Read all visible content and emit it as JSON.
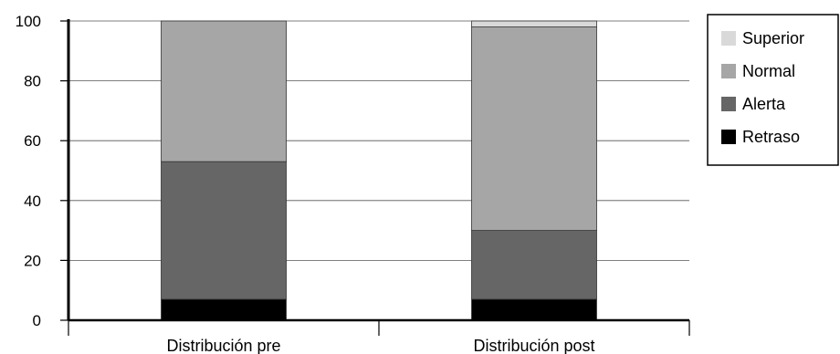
{
  "chart_data": {
    "type": "bar",
    "stacked": true,
    "categories": [
      "Distribución pre",
      "Distribución post"
    ],
    "series": [
      {
        "name": "Retraso",
        "values": [
          7,
          7
        ],
        "color": "#000000"
      },
      {
        "name": "Alerta",
        "values": [
          46,
          23
        ],
        "color": "#666666"
      },
      {
        "name": "Normal",
        "values": [
          47,
          68
        ],
        "color": "#a6a6a6"
      },
      {
        "name": "Superior",
        "values": [
          0,
          2
        ],
        "color": "#d9d9d9"
      }
    ],
    "legend_order": [
      "Superior",
      "Normal",
      "Alerta",
      "Retraso"
    ],
    "ylim": [
      0,
      100
    ],
    "yticks": [
      0,
      20,
      40,
      60,
      80,
      100
    ],
    "grid": true,
    "legend_position": "top-right",
    "title": "",
    "xlabel": "",
    "ylabel": ""
  }
}
